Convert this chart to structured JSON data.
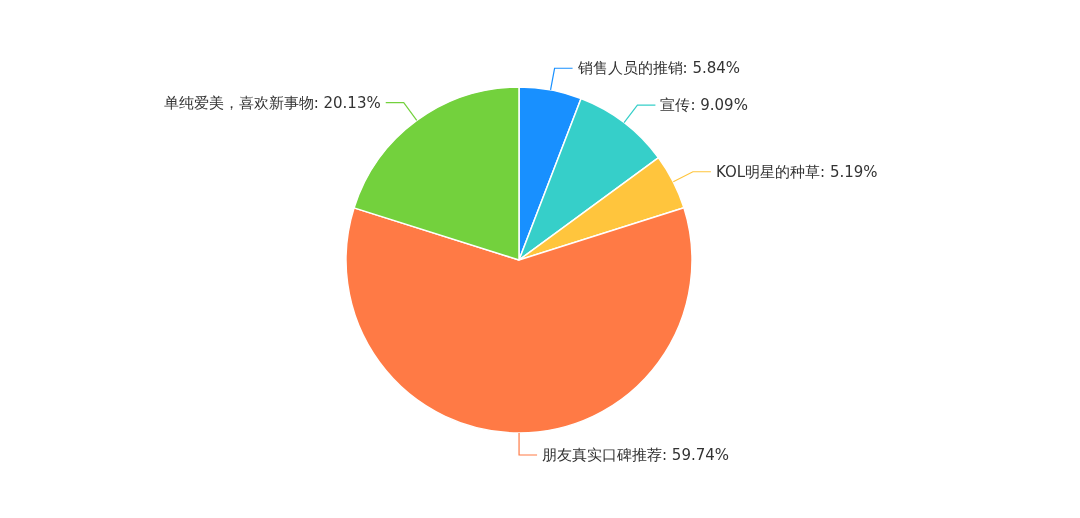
{
  "chart_data": {
    "type": "pie",
    "categories": [
      "销售人员的推销",
      "宣传",
      "KOL明星的种草",
      "朋友真实口碑推荐",
      "单纯爱美，喜欢新事物"
    ],
    "values": [
      5.84,
      9.09,
      5.19,
      59.74,
      20.13
    ],
    "value_labels": [
      "5.84%",
      "9.09%",
      "5.19%",
      "59.74%",
      "20.13%"
    ],
    "colors": [
      "#1890ff",
      "#36cfc9",
      "#ffc53d",
      "#ff7a45",
      "#73d13d"
    ]
  }
}
